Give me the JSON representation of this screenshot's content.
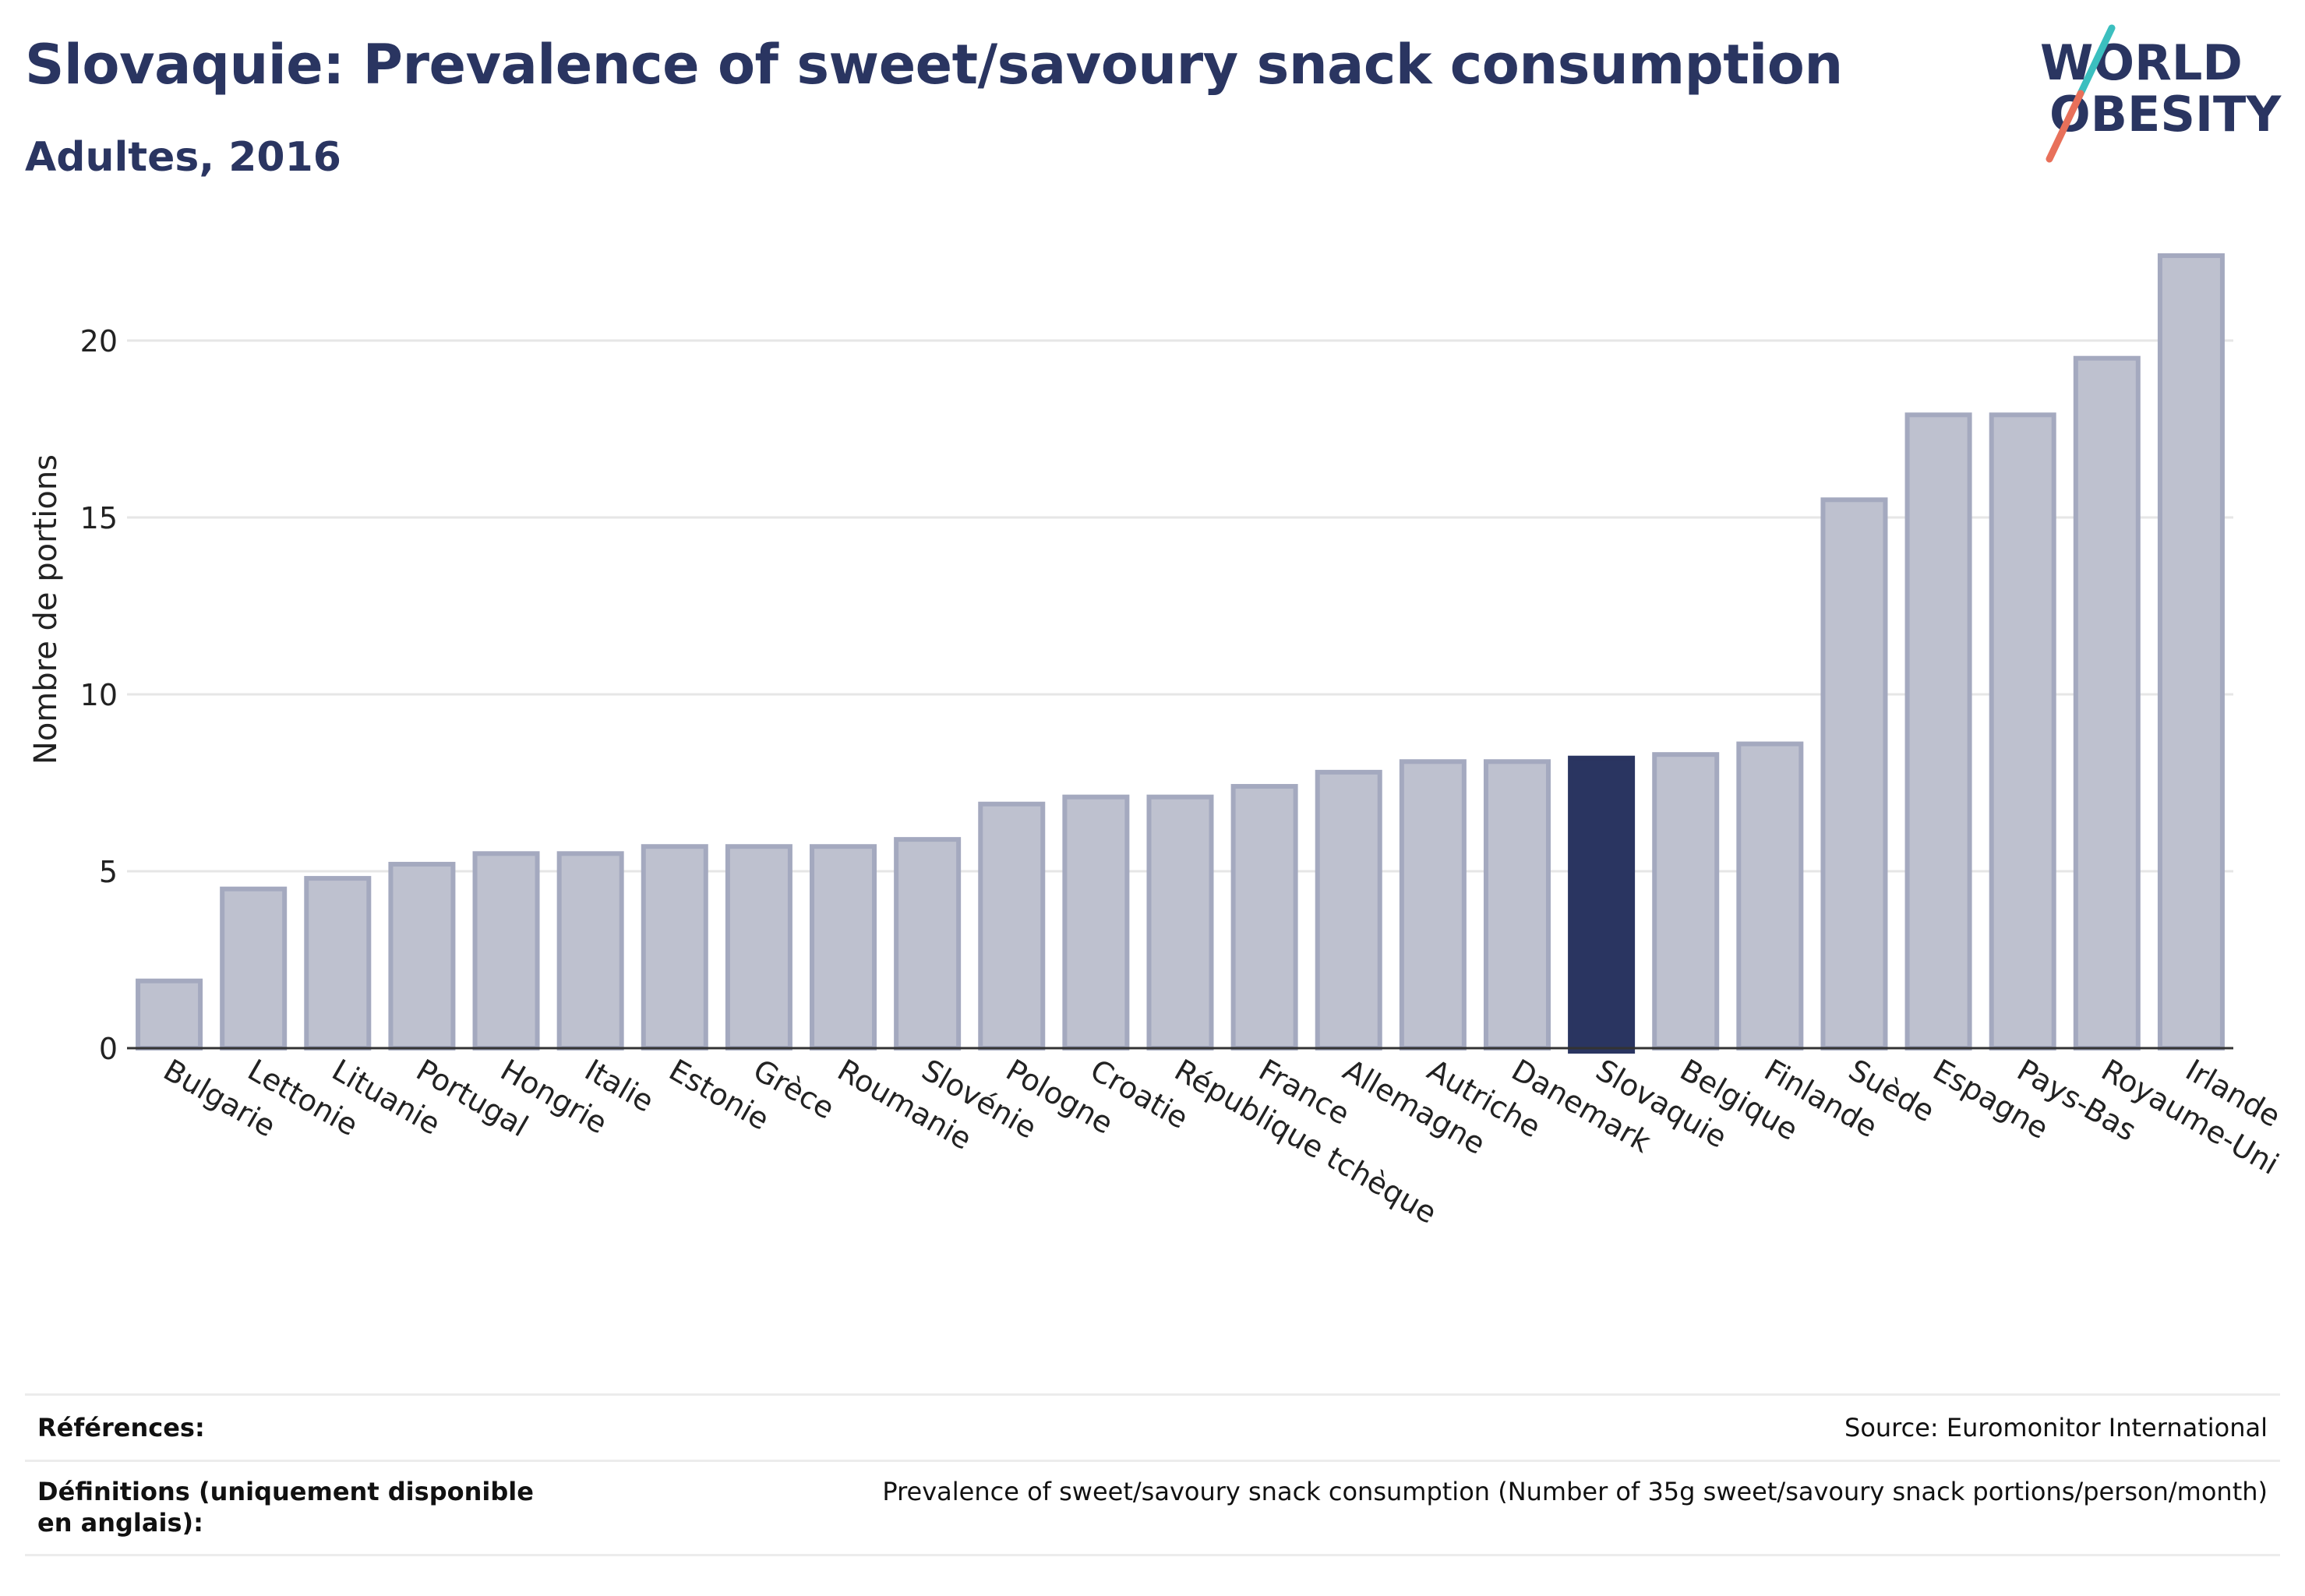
{
  "header": {
    "title": "Slovaquie: Prevalence of sweet/savoury snack consumption",
    "subtitle": "Adultes, 2016"
  },
  "logo": {
    "line1": "WORLD",
    "line2": "OBESITY",
    "colors": {
      "text": "#2a3561",
      "slash_top": "#3bbfbf",
      "slash_bottom": "#e8705a"
    }
  },
  "chart_data": {
    "type": "bar",
    "title": "Slovaquie: Prevalence of sweet/savoury snack consumption",
    "subtitle": "Adultes, 2016",
    "xlabel": "",
    "ylabel": "Nombre de portions",
    "ylim": [
      0,
      23
    ],
    "yticks": [
      0,
      5,
      10,
      15,
      20
    ],
    "grid": true,
    "categories": [
      "Bulgarie",
      "Lettonie",
      "Lituanie",
      "Portugal",
      "Hongrie",
      "Italie",
      "Estonie",
      "Grèce",
      "Roumanie",
      "Slovénie",
      "Pologne",
      "Croatie",
      "République tchèque",
      "France",
      "Allemagne",
      "Autriche",
      "Danemark",
      "Slovaquie",
      "Belgique",
      "Finlande",
      "Suède",
      "Espagne",
      "Pays-Bas",
      "Royaume-Uni",
      "Irlande"
    ],
    "values": [
      1.9,
      4.5,
      4.8,
      5.2,
      5.5,
      5.5,
      5.7,
      5.7,
      5.7,
      5.9,
      6.9,
      7.1,
      7.1,
      7.4,
      7.8,
      8.1,
      8.1,
      8.2,
      8.3,
      8.6,
      15.5,
      17.9,
      17.9,
      19.5,
      22.4
    ],
    "highlight": "Slovaquie",
    "colors": {
      "bar": "#bec1cf",
      "bar_edge": "#a4a9bf",
      "highlight": "#2a3561",
      "grid": "#e6e6e6",
      "axis": "#333333"
    }
  },
  "footer": {
    "references_label": "Références:",
    "references_value": "Source: Euromonitor International",
    "definitions_label": "Définitions (uniquement disponible en anglais):",
    "definitions_value": "Prevalence of sweet/savoury snack consumption (Number of 35g sweet/savoury snack portions/person/month)"
  }
}
